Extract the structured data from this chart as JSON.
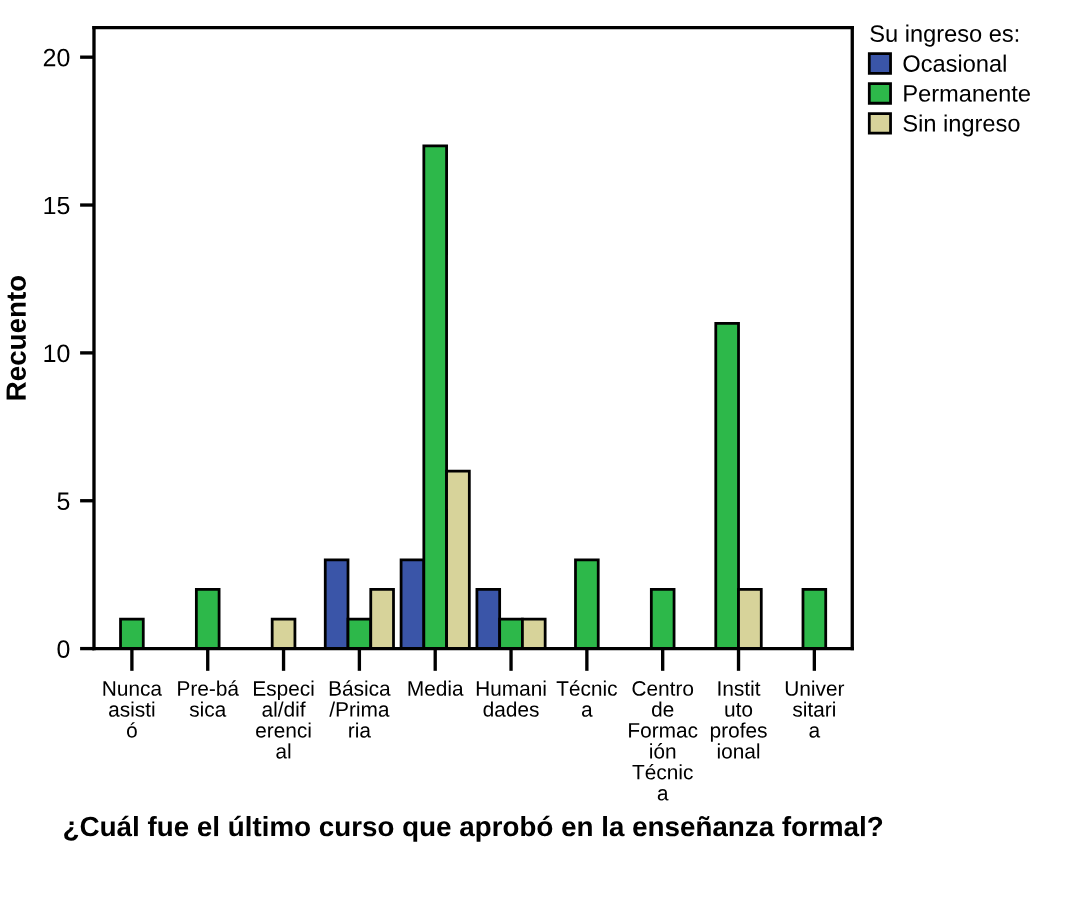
{
  "chart_data": {
    "type": "bar",
    "xlabel": "¿Cuál fue el último curso que aprobó en la enseñanza formal?",
    "ylabel": "Recuento",
    "legend_title": "Su ingreso es:",
    "categories": [
      "Nunca asistió",
      "Pre-básica",
      "Especial/diferencial",
      "Básica/Primaria",
      "Media",
      "Humanidades",
      "Técnica",
      "Centro de Formación Técnica",
      "Instituto profesional",
      "Universitaria"
    ],
    "series": [
      {
        "name": "Ocasional",
        "color": "#3a55a8",
        "values": [
          null,
          null,
          null,
          3,
          3,
          2,
          null,
          null,
          null,
          null
        ]
      },
      {
        "name": "Permanente",
        "color": "#2db84a",
        "values": [
          1,
          2,
          null,
          1,
          17,
          1,
          3,
          2,
          11,
          2
        ]
      },
      {
        "name": "Sin ingreso",
        "color": "#d7d39a",
        "values": [
          null,
          null,
          1,
          2,
          6,
          1,
          null,
          null,
          2,
          null
        ]
      }
    ],
    "ylim": [
      0,
      21
    ],
    "yticks": [
      0,
      5,
      10,
      15,
      20
    ],
    "grid": false,
    "legend": "top right"
  }
}
